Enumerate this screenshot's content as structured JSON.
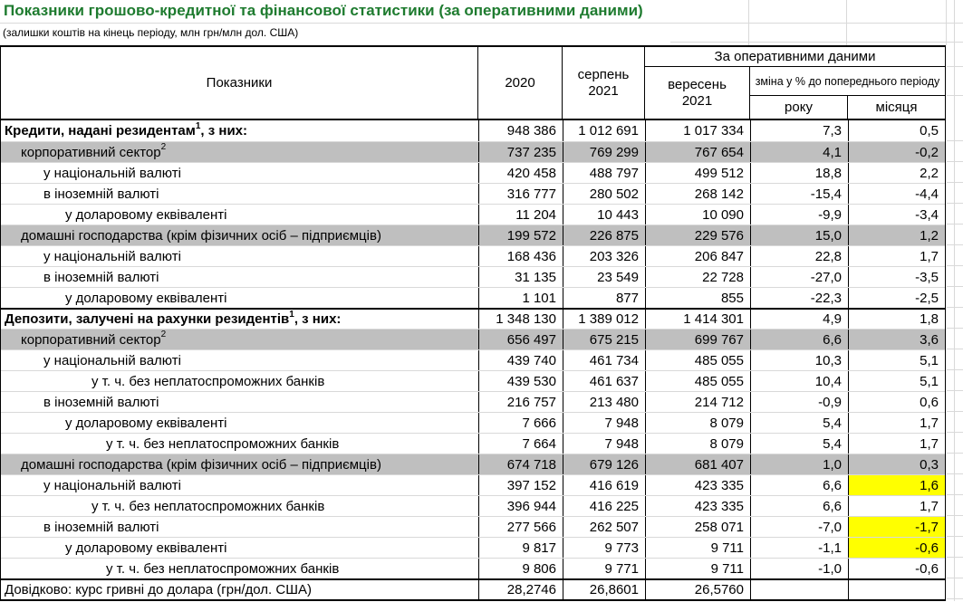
{
  "title": "Показники грошово-кредитної та фінансової статистики (за оперативними даними)",
  "subtitle": "(залишки коштів на кінець періоду, млн грн/млн дол. США)",
  "colors": {
    "title_green": "#1e7b2f",
    "row_shaded": "#bfbfbf",
    "highlight_yellow": "#ffff00",
    "gridline": "#d9d9d9",
    "border_dark": "#000000"
  },
  "table": {
    "header": {
      "indicators": "Показники",
      "col_2020": "2020",
      "col_aug_line1": "серпень",
      "col_aug_line2": "2021",
      "operational_group": "За оперативними даними",
      "col_sep_line1": "вересень",
      "col_sep_line2": "2021",
      "change_group": "зміна у % до попереднього періоду",
      "col_year": "року",
      "col_month": "місяця"
    },
    "rows": [
      {
        "label": "Кредити, надані резидентам",
        "sup": "1",
        "suffix": ", з них:",
        "bold": true,
        "indent": 0,
        "values": [
          "948 386",
          "1 012 691",
          "1 017 334",
          "7,3",
          "0,5"
        ]
      },
      {
        "label": "корпоративний сектор",
        "sup": "2",
        "shaded": true,
        "indent": 1,
        "values": [
          "737 235",
          "769 299",
          "767 654",
          "4,1",
          "-0,2"
        ]
      },
      {
        "label": "у національній валюті",
        "indent": 2,
        "values": [
          "420 458",
          "488 797",
          "499 512",
          "18,8",
          "2,2"
        ]
      },
      {
        "label": "в іноземній валюті",
        "indent": 2,
        "values": [
          "316 777",
          "280 502",
          "268 142",
          "-15,4",
          "-4,4"
        ]
      },
      {
        "label": "у доларовому еквіваленті",
        "indent": 3,
        "values": [
          "11 204",
          "10 443",
          "10 090",
          "-9,9",
          "-3,4"
        ]
      },
      {
        "label": "домашні господарства (крім фізичних осіб – підприємців)",
        "shaded": true,
        "indent": 1,
        "values": [
          "199 572",
          "226 875",
          "229 576",
          "15,0",
          "1,2"
        ]
      },
      {
        "label": "у національній валюті",
        "indent": 2,
        "values": [
          "168 436",
          "203 326",
          "206 847",
          "22,8",
          "1,7"
        ]
      },
      {
        "label": "в іноземній валюті",
        "indent": 2,
        "values": [
          "31 135",
          "23 549",
          "22 728",
          "-27,0",
          "-3,5"
        ]
      },
      {
        "label": "у доларовому еквіваленті",
        "indent": 3,
        "values": [
          "1 101",
          "877",
          "855",
          "-22,3",
          "-2,5"
        ]
      },
      {
        "label": "Депозити, залучені на рахунки резидентів",
        "sup": "1",
        "suffix": ", з них:",
        "bold": true,
        "indent": 0,
        "thick_top": true,
        "values": [
          "1 348 130",
          "1 389 012",
          "1 414 301",
          "4,9",
          "1,8"
        ]
      },
      {
        "label": "корпоративний сектор",
        "sup": "2",
        "shaded": true,
        "indent": 1,
        "values": [
          "656 497",
          "675 215",
          "699 767",
          "6,6",
          "3,6"
        ]
      },
      {
        "label": "у національній валюті",
        "indent": 2,
        "values": [
          "439 740",
          "461 734",
          "485 055",
          "10,3",
          "5,1"
        ]
      },
      {
        "label": "у т. ч. без неплатоспроможних банків",
        "indent": 4,
        "values": [
          "439 530",
          "461 637",
          "485 055",
          "10,4",
          "5,1"
        ]
      },
      {
        "label": "в іноземній валюті",
        "indent": 2,
        "values": [
          "216 757",
          "213 480",
          "214 712",
          "-0,9",
          "0,6"
        ]
      },
      {
        "label": "у доларовому еквіваленті",
        "indent": 3,
        "values": [
          "7 666",
          "7 948",
          "8 079",
          "5,4",
          "1,7"
        ]
      },
      {
        "label": "у т. ч. без неплатоспроможних банків",
        "indent": 5,
        "values": [
          "7 664",
          "7 948",
          "8 079",
          "5,4",
          "1,7"
        ]
      },
      {
        "label": "домашні господарства (крім фізичних осіб – підприємців)",
        "shaded": true,
        "indent": 1,
        "values": [
          "674 718",
          "679 126",
          "681 407",
          "1,0",
          "0,3"
        ]
      },
      {
        "label": "у національній валюті",
        "indent": 2,
        "values": [
          "397 152",
          "416 619",
          "423 335",
          "6,6",
          "1,6"
        ],
        "highlight": [
          4
        ]
      },
      {
        "label": "у т. ч. без неплатоспроможних банків",
        "indent": 4,
        "values": [
          "396 944",
          "416 225",
          "423 335",
          "6,6",
          "1,7"
        ]
      },
      {
        "label": "в іноземній валюті",
        "indent": 2,
        "values": [
          "277 566",
          "262 507",
          "258 071",
          "-7,0",
          "-1,7"
        ],
        "highlight": [
          4
        ]
      },
      {
        "label": "у доларовому еквіваленті",
        "indent": 3,
        "values": [
          "9 817",
          "9 773",
          "9 711",
          "-1,1",
          "-0,6"
        ],
        "highlight": [
          4
        ]
      },
      {
        "label": "у т. ч. без неплатоспроможних банків",
        "indent": 5,
        "values": [
          "9 806",
          "9 771",
          "9 711",
          "-1,0",
          "-0,6"
        ]
      },
      {
        "label": "Довідково: курс гривні до долара (грн/дол. США)",
        "indent": 0,
        "thick_top": true,
        "values": [
          "28,2746",
          "26,8601",
          "26,5760",
          "",
          ""
        ]
      }
    ]
  }
}
